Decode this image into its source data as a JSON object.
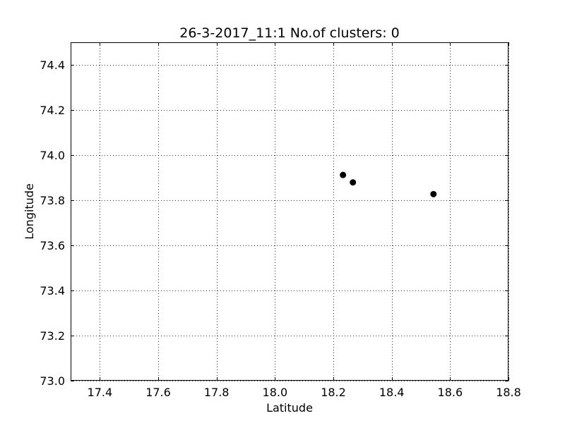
{
  "chart_data": {
    "type": "scatter",
    "title": "26-3-2017_11:1 No.of clusters: 0",
    "xlabel": "Latitude",
    "ylabel": "Longitude",
    "xlim": [
      17.3,
      18.8
    ],
    "ylim": [
      73.0,
      74.5
    ],
    "xticks": [
      "17.4",
      "17.6",
      "17.8",
      "18.0",
      "18.2",
      "18.4",
      "18.6",
      "18.8"
    ],
    "yticks": [
      "73.0",
      "73.2",
      "73.4",
      "73.6",
      "73.8",
      "74.0",
      "74.2",
      "74.4"
    ],
    "grid": true,
    "legend": "none",
    "point_color": "#000000",
    "points": [
      {
        "x": 18.233,
        "y": 73.912
      },
      {
        "x": 18.267,
        "y": 73.879
      },
      {
        "x": 18.543,
        "y": 73.827
      }
    ]
  }
}
